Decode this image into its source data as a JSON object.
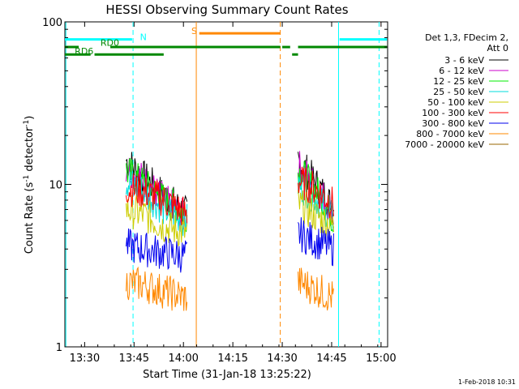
{
  "chart_data": {
    "type": "line",
    "title": "HESSI Observing Summary Count Rates",
    "xlabel": "Start Time (31-Jan-18 13:25:22)",
    "ylabel_main": "Count Rate (s",
    "ylabel_sup1": "-1",
    "ylabel_mid": " detector",
    "ylabel_sup2": "-1",
    "ylabel_end": ")",
    "y_scale": "log",
    "ylim": [
      1,
      100
    ],
    "xlim_minutes": [
      13.4,
      15.0333
    ],
    "x_ticks": [
      {
        "label": "13:30",
        "t": 13.5
      },
      {
        "label": "13:45",
        "t": 13.75
      },
      {
        "label": "14:00",
        "t": 14.0
      },
      {
        "label": "14:15",
        "t": 14.25
      },
      {
        "label": "14:30",
        "t": 14.5
      },
      {
        "label": "14:45",
        "t": 14.75
      },
      {
        "label": "15:00",
        "t": 15.0
      }
    ],
    "y_ticks": [
      {
        "label": "1",
        "v": 1
      },
      {
        "label": "10",
        "v": 10
      },
      {
        "label": "100",
        "v": 100
      }
    ],
    "legend_placement": "right",
    "legend_header": [
      "Det 1,3, FDecim 2,",
      "Att 0"
    ],
    "series": [
      {
        "name": "3 - 6 keV",
        "color": "#000000",
        "values": [
          {
            "seg": 1,
            "pts": [
              [
                13.71,
                14.0
              ],
              [
                13.8,
                11.0
              ],
              [
                13.9,
                8.5
              ],
              [
                14.02,
                6.5
              ]
            ]
          },
          {
            "seg": 2,
            "pts": [
              [
                14.58,
                14.0
              ],
              [
                14.66,
                10.5
              ],
              [
                14.76,
                7.0
              ]
            ]
          }
        ]
      },
      {
        "name": "6 - 12 keV",
        "color": "#cc00cc",
        "values": [
          {
            "seg": 1,
            "pts": [
              [
                13.71,
                13.0
              ],
              [
                13.8,
                10.5
              ],
              [
                13.9,
                8.0
              ],
              [
                14.02,
                6.0
              ]
            ]
          },
          {
            "seg": 2,
            "pts": [
              [
                14.58,
                13.0
              ],
              [
                14.66,
                10.0
              ],
              [
                14.76,
                6.5
              ]
            ]
          }
        ]
      },
      {
        "name": "12 - 25 keV",
        "color": "#00ee00",
        "values": [
          {
            "seg": 1,
            "pts": [
              [
                13.71,
                12.0
              ],
              [
                13.8,
                10.0
              ],
              [
                13.9,
                8.0
              ],
              [
                14.02,
                6.5
              ]
            ]
          },
          {
            "seg": 2,
            "pts": [
              [
                14.58,
                12.0
              ],
              [
                14.66,
                9.5
              ],
              [
                14.76,
                6.0
              ]
            ]
          }
        ]
      },
      {
        "name": "25 - 50 keV",
        "color": "#00dddd",
        "values": [
          {
            "seg": 1,
            "pts": [
              [
                13.71,
                10.5
              ],
              [
                13.8,
                9.0
              ],
              [
                13.9,
                7.0
              ],
              [
                14.02,
                6.0
              ]
            ]
          },
          {
            "seg": 2,
            "pts": [
              [
                14.58,
                10.0
              ],
              [
                14.66,
                8.5
              ],
              [
                14.76,
                6.0
              ]
            ]
          }
        ]
      },
      {
        "name": "50 - 100 keV",
        "color": "#cccc00",
        "values": [
          {
            "seg": 1,
            "pts": [
              [
                13.71,
                7.0
              ],
              [
                13.8,
                6.5
              ],
              [
                13.9,
                5.5
              ],
              [
                14.02,
                5.0
              ]
            ]
          },
          {
            "seg": 2,
            "pts": [
              [
                14.58,
                7.5
              ],
              [
                14.66,
                6.5
              ],
              [
                14.76,
                5.5
              ]
            ]
          }
        ]
      },
      {
        "name": "100 - 300 keV",
        "color": "#ff0000",
        "values": [
          {
            "seg": 1,
            "pts": [
              [
                13.71,
                9.5
              ],
              [
                13.8,
                9.0
              ],
              [
                13.9,
                8.0
              ],
              [
                14.02,
                6.5
              ]
            ]
          },
          {
            "seg": 2,
            "pts": [
              [
                14.58,
                10.5
              ],
              [
                14.66,
                9.5
              ],
              [
                14.76,
                7.5
              ]
            ]
          }
        ]
      },
      {
        "name": "300 - 800 keV",
        "color": "#0000ee",
        "values": [
          {
            "seg": 1,
            "pts": [
              [
                13.71,
                4.2
              ],
              [
                13.8,
                4.0
              ],
              [
                13.9,
                3.8
              ],
              [
                14.02,
                3.6
              ]
            ]
          },
          {
            "seg": 2,
            "pts": [
              [
                14.58,
                5.0
              ],
              [
                14.66,
                4.5
              ],
              [
                14.76,
                4.0
              ]
            ]
          }
        ]
      },
      {
        "name": "800 - 7000 keV",
        "color": "#ff8800",
        "values": [
          {
            "seg": 1,
            "pts": [
              [
                13.71,
                2.5
              ],
              [
                13.8,
                2.4
              ],
              [
                13.9,
                2.2
              ],
              [
                14.02,
                2.0
              ]
            ]
          },
          {
            "seg": 2,
            "pts": [
              [
                14.58,
                2.5
              ],
              [
                14.66,
                2.3
              ],
              [
                14.76,
                2.0
              ]
            ]
          }
        ]
      },
      {
        "name": "7000 - 20000 keV",
        "color": "#996600",
        "values": []
      }
    ],
    "flags": [
      {
        "name": "N",
        "color": "#00ffff",
        "y": 78,
        "segments": [
          [
            13.4,
            13.74
          ],
          [
            14.79,
            15.03
          ]
        ]
      },
      {
        "name": "S",
        "color": "#ff8800",
        "y": 85,
        "segments": [
          [
            14.08,
            14.49
          ]
        ]
      },
      {
        "name": "RD0",
        "color": "#008800",
        "y": 70,
        "segments": [
          [
            13.4,
            13.47
          ],
          [
            13.63,
            14.49
          ],
          [
            14.5,
            14.54
          ],
          [
            14.58,
            15.03
          ]
        ]
      },
      {
        "name": "RD6",
        "color": "#008800",
        "y": 63,
        "segments": [
          [
            13.4,
            13.53
          ],
          [
            13.55,
            13.9
          ],
          [
            14.55,
            14.58
          ]
        ]
      }
    ],
    "vlines": [
      {
        "t": 13.745,
        "color": "#00ffff",
        "dash": true
      },
      {
        "t": 14.065,
        "color": "#ff8800",
        "dash": false
      },
      {
        "t": 14.49,
        "color": "#ff8800",
        "dash": true
      },
      {
        "t": 14.785,
        "color": "#00ffff",
        "dash": false
      },
      {
        "t": 14.99,
        "color": "#00ffff",
        "dash": true
      },
      {
        "t": 13.405,
        "color": "#00ffff",
        "dash": false
      }
    ]
  },
  "flag_labels": {
    "N": "N",
    "S": "S",
    "RD0": "RD0",
    "RD6": "RD6"
  },
  "footer": {
    "date": "1-Feb-2018 10:31"
  }
}
